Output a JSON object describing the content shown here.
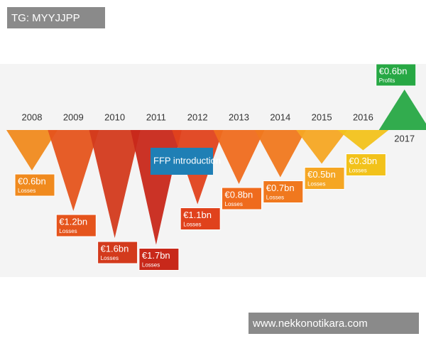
{
  "chart_data": {
    "type": "triangle",
    "categories": [
      "2008",
      "2009",
      "2010",
      "2011",
      "2012",
      "2013",
      "2014",
      "2015",
      "2016",
      "2017"
    ],
    "values": [
      -0.6,
      -1.2,
      -1.6,
      -1.7,
      -1.1,
      -0.8,
      -0.7,
      -0.5,
      -0.3,
      0.6
    ],
    "value_labels": [
      "€0.6bn",
      "€1.2bn",
      "€1.6bn",
      "€1.7bn",
      "€1.1bn",
      "€0.8bn",
      "€0.7bn",
      "€0.5bn",
      "€0.3bn",
      "€0.6bn"
    ],
    "value_sublabels": [
      "Losses",
      "Losses",
      "Losses",
      "Losses",
      "Losses",
      "Losses",
      "Losses",
      "Losses",
      "Losses",
      "Profits"
    ],
    "colors": [
      "#f08a1e",
      "#e5541c",
      "#d33a1c",
      "#c8281a",
      "#e0421c",
      "#ef6b1d",
      "#f0781e",
      "#f5a623",
      "#f2c21b",
      "#27a844"
    ],
    "annotation": "FFP introduction"
  },
  "watermarks": [
    "TG: MYYJJPP",
    "www.nekkonotikara.com"
  ]
}
